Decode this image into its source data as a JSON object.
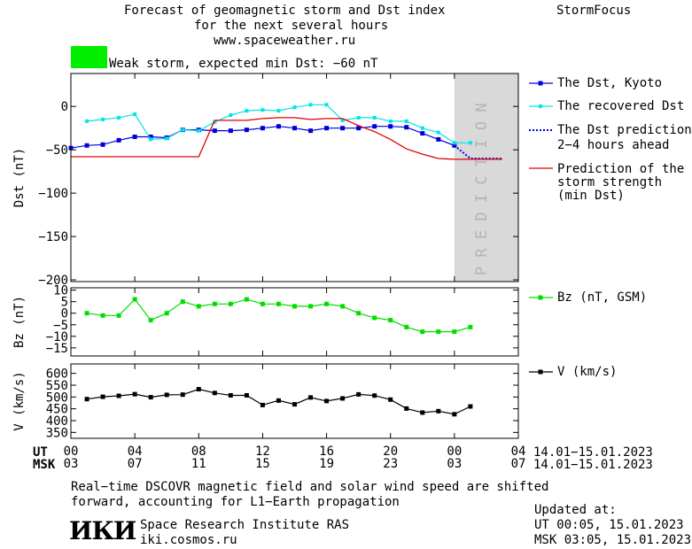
{
  "header": {
    "title_line1": "Forecast of geomagnetic storm and Dst index",
    "title_line2": "for the next several hours",
    "url": "www.spaceweather.ru",
    "brand": "StormFocus",
    "storm_label": "Weak storm, expected min Dst: −60 nT",
    "storm_color": "#00ee00"
  },
  "legend": {
    "dst_kyoto": "The Dst, Kyoto",
    "dst_recovered": "The recovered Dst",
    "dst_prediction_1": "The Dst prediction",
    "dst_prediction_2": "2−4 hours ahead",
    "storm_strength_1": "Prediction of the",
    "storm_strength_2": "storm strength",
    "storm_strength_3": "(min Dst)",
    "bz": "Bz (nT, GSM)",
    "v": "V (km/s)"
  },
  "time_axis": {
    "ut_label": "UT",
    "msk_label": "MSK",
    "ut_ticks": [
      "00",
      "04",
      "08",
      "12",
      "16",
      "20",
      "00",
      "04"
    ],
    "msk_ticks": [
      "03",
      "07",
      "11",
      "15",
      "19",
      "23",
      "03",
      "07"
    ],
    "ut_range": "14.01−15.01.2023",
    "msk_range": "14.01−15.01.2023"
  },
  "prediction_band_text": "PREDICTION",
  "footer": {
    "note_line1": "Real−time DSCOVR magnetic field and solar wind speed are shifted",
    "note_line2": "forward, accounting for L1−Earth propagation",
    "institute": "Space Research Institute RAS",
    "institute_url": "iki.cosmos.ru",
    "logo_text": "ИКИ",
    "updated_label": "Updated at:",
    "updated_ut": "UT   00:05, 15.01.2023",
    "updated_msk": "MSK 03:05, 15.01.2023"
  },
  "chart_data": [
    {
      "type": "line",
      "ylabel": "Dst (nT)",
      "ylim": [
        -202,
        38
      ],
      "yticks": [
        0,
        -50,
        -100,
        -150,
        -200
      ],
      "xlim": [
        0,
        28
      ],
      "prediction_band": [
        24,
        28
      ],
      "series": [
        {
          "name": "The Dst, Kyoto",
          "color": "#0000dd",
          "x": [
            0,
            1,
            2,
            3,
            4,
            5,
            6,
            7,
            8,
            9,
            10,
            11,
            12,
            13,
            14,
            15,
            16,
            17,
            18,
            19,
            20,
            21,
            22,
            23,
            24
          ],
          "y": [
            -48,
            -45,
            -44,
            -39,
            -35,
            -35,
            -36,
            -27,
            -27,
            -28,
            -28,
            -27,
            -25,
            -23,
            -25,
            -28,
            -25,
            -25,
            -25,
            -23,
            -23,
            -24,
            -31,
            -38,
            -45
          ]
        },
        {
          "name": "The recovered Dst",
          "color": "#00e5e5",
          "x": [
            1,
            2,
            3,
            4,
            5,
            6,
            7,
            8,
            9,
            10,
            11,
            12,
            13,
            14,
            15,
            16,
            17,
            18,
            19,
            20,
            21,
            22,
            23,
            24,
            25
          ],
          "y": [
            -17,
            -15,
            -13,
            -9,
            -38,
            -37,
            -27,
            -28,
            -18,
            -10,
            -5,
            -4,
            -5,
            -1,
            2,
            2,
            -16,
            -13,
            -13,
            -17,
            -17,
            -25,
            -30,
            -42,
            -42
          ]
        },
        {
          "name": "The Dst prediction 2−4 hours ahead",
          "color": "#0000dd",
          "x": [
            24,
            25,
            26,
            27
          ],
          "y": [
            -45,
            -60,
            -60,
            -60
          ]
        },
        {
          "name": "Prediction of the storm strength (min Dst)",
          "color": "#e00000",
          "x": [
            0,
            8,
            9,
            11,
            12,
            13,
            14,
            15,
            16,
            17,
            18,
            19,
            20,
            21,
            22,
            23,
            24,
            25,
            26,
            27
          ],
          "y": [
            -58,
            -58,
            -16,
            -16,
            -14,
            -13,
            -13,
            -15,
            -14,
            -14,
            -22,
            -29,
            -38,
            -49,
            -55,
            -60,
            -61,
            -61,
            -61,
            -61
          ]
        }
      ]
    },
    {
      "type": "line",
      "ylabel": "Bz (nT)",
      "ylim": [
        -18.5,
        11
      ],
      "yticks": [
        10,
        5,
        0,
        -5,
        -10,
        -15
      ],
      "xlim": [
        0,
        28
      ],
      "series": [
        {
          "name": "Bz (nT, GSM)",
          "color": "#00dd00",
          "x": [
            1,
            2,
            3,
            4,
            5,
            6,
            7,
            8,
            9,
            10,
            11,
            12,
            13,
            14,
            15,
            16,
            17,
            18,
            19,
            20,
            21,
            22,
            23,
            24,
            25
          ],
          "y": [
            0,
            -1,
            -1,
            6,
            -3,
            0,
            5,
            3,
            4,
            4,
            6,
            4,
            4,
            3,
            3,
            4,
            3,
            0,
            -2,
            -3,
            -6,
            -8,
            -8,
            -8,
            -6
          ]
        }
      ]
    },
    {
      "type": "line",
      "ylabel": "V (km/s)",
      "ylim": [
        325,
        640
      ],
      "yticks": [
        600,
        550,
        500,
        450,
        400,
        350
      ],
      "xlim": [
        0,
        28
      ],
      "series": [
        {
          "name": "V (km/s)",
          "color": "#000000",
          "x": [
            1,
            2,
            3,
            4,
            5,
            6,
            7,
            8,
            9,
            10,
            11,
            12,
            13,
            14,
            15,
            16,
            17,
            18,
            19,
            20,
            21,
            22,
            23,
            24,
            25
          ],
          "y": [
            491,
            501,
            505,
            512,
            499,
            509,
            510,
            533,
            517,
            507,
            507,
            466,
            485,
            469,
            498,
            483,
            494,
            511,
            506,
            489,
            451,
            434,
            440,
            427,
            460
          ]
        }
      ]
    }
  ]
}
